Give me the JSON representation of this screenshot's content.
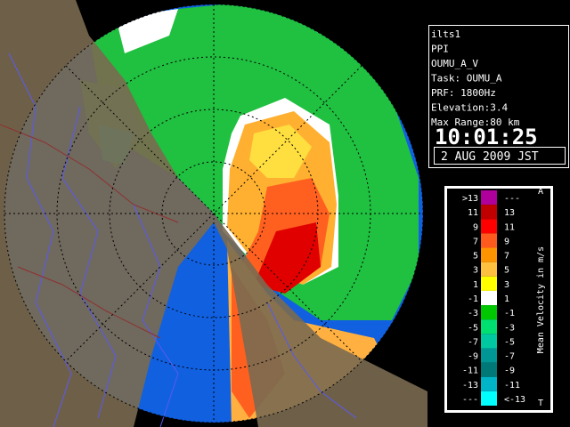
{
  "info": {
    "lines": [
      "ilts1",
      "PPI",
      "OUMU_A_V",
      "Task: OUMU_A",
      "PRF: 1800Hz",
      "Elevation:3.4",
      "Max Range:80 km"
    ],
    "time": "10:01:25",
    "date": "2 AUG 2009 JST"
  },
  "legend": {
    "title": "Mean Velocity in m/s",
    "top_mark": "A",
    "bottom_mark": "T",
    "rows": [
      {
        "low": ">13",
        "high": "---",
        "color": "#b0009c"
      },
      {
        "low": "11",
        "high": "13",
        "color": "#c00000"
      },
      {
        "low": "9",
        "high": "11",
        "color": "#ff0000"
      },
      {
        "low": "7",
        "high": "9",
        "color": "#ff5a1e"
      },
      {
        "low": "5",
        "high": "7",
        "color": "#ff9400"
      },
      {
        "low": "3",
        "high": "5",
        "color": "#ffc040"
      },
      {
        "low": "1",
        "high": "3",
        "color": "#ffff00"
      },
      {
        "low": "-1",
        "high": "1",
        "color": "#ffffff"
      },
      {
        "low": "-3",
        "high": "-1",
        "color": "#00c800"
      },
      {
        "low": "-5",
        "high": "-3",
        "color": "#00e070"
      },
      {
        "low": "-7",
        "high": "-5",
        "color": "#00c8a0"
      },
      {
        "low": "-9",
        "high": "-7",
        "color": "#009696"
      },
      {
        "low": "-11",
        "high": "-9",
        "color": "#007878"
      },
      {
        "low": "-13",
        "high": "-11",
        "color": "#00b4c8"
      },
      {
        "low": "---",
        "high": "<-13",
        "color": "#00ffff"
      }
    ]
  }
}
